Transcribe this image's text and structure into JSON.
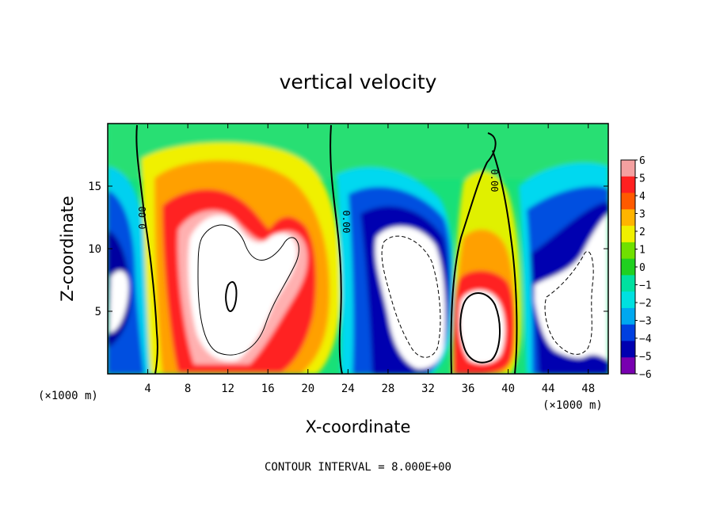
{
  "chart_data": {
    "type": "heatmap",
    "title": "vertical velocity",
    "xlabel": "X-coordinate",
    "ylabel": "Z-coordinate",
    "x_unit": "(×1000 m)",
    "x_unit_right": "(×1000 m)",
    "xlim": [
      0,
      50
    ],
    "ylim": [
      0,
      20
    ],
    "x_ticks": [
      "4",
      "8",
      "12",
      "16",
      "20",
      "24",
      "28",
      "32",
      "36",
      "40",
      "44",
      "48"
    ],
    "y_ticks": [
      "5",
      "10",
      "15"
    ],
    "contour_interval": "CONTOUR INTERVAL = 8.000E+00",
    "zero_contour_labels": [
      "0.00",
      "0.00",
      "0.00"
    ],
    "colorbar": {
      "labels": [
        "6",
        "5",
        "4",
        "3",
        "2",
        "1",
        "0",
        "−1",
        "−2",
        "−3",
        "−4",
        "−5",
        "−6"
      ],
      "range": [
        -6,
        6
      ],
      "colors": [
        "#f4a0a0",
        "#ff2020",
        "#ff5a00",
        "#ffb400",
        "#f0f000",
        "#70e000",
        "#20d020",
        "#00e0a0",
        "#00e0e0",
        "#00a8f0",
        "#0040e0",
        "#0000b0",
        "#7800b0"
      ]
    },
    "features": [
      {
        "type": "updraft",
        "x": 12,
        "z": 7,
        "strength": "strong"
      },
      {
        "type": "updraft",
        "x": 19,
        "z": 10,
        "strength": "strong"
      },
      {
        "type": "downdraft",
        "x": 30,
        "z": 7,
        "strength": "strong"
      },
      {
        "type": "updraft",
        "x": 37,
        "z": 5,
        "strength": "strong"
      },
      {
        "type": "downdraft",
        "x": 46,
        "z": 7,
        "strength": "strong"
      },
      {
        "type": "downdraft",
        "x": 1,
        "z": 6,
        "strength": "strong"
      }
    ]
  }
}
